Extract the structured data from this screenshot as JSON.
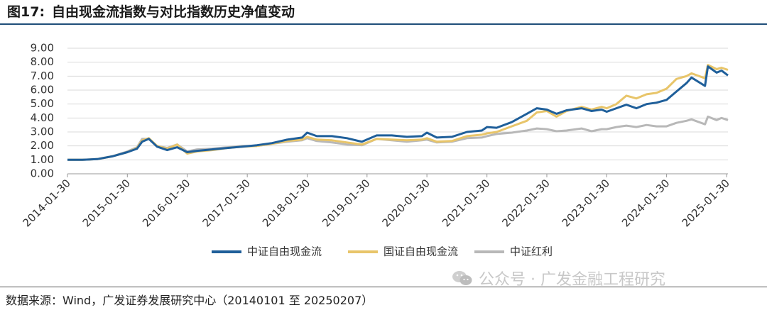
{
  "figure": {
    "number": "图17:",
    "title": "自由现金流指数与对比指数历史净值变动",
    "source": "数据来源：Wind，广发证券发展研究中心（20140101 至 20250207）",
    "watermark": "公众号 · 广发金融工程研究"
  },
  "chart_data": {
    "type": "line",
    "title": "",
    "xlabel": "",
    "ylabel": "",
    "ylim": [
      0,
      9
    ],
    "yticks": [
      "0.00",
      "1.00",
      "2.00",
      "3.00",
      "4.00",
      "5.00",
      "6.00",
      "7.00",
      "8.00",
      "9.00"
    ],
    "xlim": [
      "2014-01-30",
      "2025-02-07"
    ],
    "xticks": [
      "2014-01-30",
      "2015-01-30",
      "2016-01-30",
      "2017-01-30",
      "2018-01-30",
      "2019-01-30",
      "2020-01-30",
      "2021-01-30",
      "2022-01-30",
      "2023-01-30",
      "2024-01-30",
      "2025-01-30"
    ],
    "grid": "horizontal",
    "legend_position": "bottom",
    "series": [
      {
        "name": "中证自由现金流",
        "color": "#1f5f9a",
        "points": [
          [
            "2014-01-30",
            1.0
          ],
          [
            "2014-04-30",
            1.0
          ],
          [
            "2014-07-30",
            1.05
          ],
          [
            "2014-10-30",
            1.25
          ],
          [
            "2015-01-30",
            1.55
          ],
          [
            "2015-03-30",
            1.8
          ],
          [
            "2015-04-30",
            2.3
          ],
          [
            "2015-06-10",
            2.5
          ],
          [
            "2015-07-30",
            1.95
          ],
          [
            "2015-09-30",
            1.7
          ],
          [
            "2015-11-30",
            1.9
          ],
          [
            "2016-01-30",
            1.55
          ],
          [
            "2016-03-30",
            1.65
          ],
          [
            "2016-06-30",
            1.75
          ],
          [
            "2016-09-30",
            1.85
          ],
          [
            "2016-12-30",
            1.95
          ],
          [
            "2017-03-30",
            2.05
          ],
          [
            "2017-06-30",
            2.2
          ],
          [
            "2017-09-30",
            2.45
          ],
          [
            "2017-12-30",
            2.6
          ],
          [
            "2018-01-30",
            2.95
          ],
          [
            "2018-03-30",
            2.7
          ],
          [
            "2018-06-30",
            2.7
          ],
          [
            "2018-09-30",
            2.55
          ],
          [
            "2018-12-30",
            2.3
          ],
          [
            "2019-03-30",
            2.75
          ],
          [
            "2019-06-30",
            2.75
          ],
          [
            "2019-09-30",
            2.65
          ],
          [
            "2019-12-30",
            2.7
          ],
          [
            "2020-01-30",
            2.95
          ],
          [
            "2020-03-30",
            2.6
          ],
          [
            "2020-06-30",
            2.65
          ],
          [
            "2020-09-30",
            3.0
          ],
          [
            "2020-12-30",
            3.1
          ],
          [
            "2021-01-30",
            3.35
          ],
          [
            "2021-03-30",
            3.3
          ],
          [
            "2021-06-30",
            3.7
          ],
          [
            "2021-09-30",
            4.3
          ],
          [
            "2021-11-30",
            4.7
          ],
          [
            "2022-01-30",
            4.6
          ],
          [
            "2022-03-30",
            4.3
          ],
          [
            "2022-05-30",
            4.55
          ],
          [
            "2022-08-30",
            4.7
          ],
          [
            "2022-10-30",
            4.5
          ],
          [
            "2022-12-30",
            4.6
          ],
          [
            "2023-01-30",
            4.45
          ],
          [
            "2023-03-30",
            4.7
          ],
          [
            "2023-05-30",
            4.95
          ],
          [
            "2023-07-30",
            4.7
          ],
          [
            "2023-09-30",
            5.0
          ],
          [
            "2023-11-30",
            5.1
          ],
          [
            "2024-01-30",
            5.3
          ],
          [
            "2024-03-30",
            5.9
          ],
          [
            "2024-05-30",
            6.5
          ],
          [
            "2024-06-30",
            6.9
          ],
          [
            "2024-09-20",
            6.3
          ],
          [
            "2024-10-08",
            7.7
          ],
          [
            "2024-11-30",
            7.25
          ],
          [
            "2024-12-30",
            7.4
          ],
          [
            "2025-02-07",
            7.05
          ]
        ]
      },
      {
        "name": "国证自由现金流",
        "color": "#e8c56a",
        "points": [
          [
            "2014-01-30",
            1.0
          ],
          [
            "2014-04-30",
            1.0
          ],
          [
            "2014-07-30",
            1.05
          ],
          [
            "2014-10-30",
            1.25
          ],
          [
            "2015-01-30",
            1.55
          ],
          [
            "2015-03-30",
            1.85
          ],
          [
            "2015-04-30",
            2.4
          ],
          [
            "2015-06-10",
            2.55
          ],
          [
            "2015-07-30",
            2.0
          ],
          [
            "2015-09-30",
            1.8
          ],
          [
            "2015-11-30",
            2.1
          ],
          [
            "2016-01-30",
            1.45
          ],
          [
            "2016-03-30",
            1.6
          ],
          [
            "2016-06-30",
            1.7
          ],
          [
            "2016-09-30",
            1.85
          ],
          [
            "2016-12-30",
            1.95
          ],
          [
            "2017-03-30",
            2.0
          ],
          [
            "2017-06-30",
            2.15
          ],
          [
            "2017-09-30",
            2.35
          ],
          [
            "2017-12-30",
            2.45
          ],
          [
            "2018-01-30",
            2.65
          ],
          [
            "2018-03-30",
            2.45
          ],
          [
            "2018-06-30",
            2.4
          ],
          [
            "2018-09-30",
            2.25
          ],
          [
            "2018-12-30",
            2.1
          ],
          [
            "2019-03-30",
            2.5
          ],
          [
            "2019-06-30",
            2.45
          ],
          [
            "2019-09-30",
            2.4
          ],
          [
            "2019-12-30",
            2.45
          ],
          [
            "2020-01-30",
            2.55
          ],
          [
            "2020-03-30",
            2.3
          ],
          [
            "2020-06-30",
            2.35
          ],
          [
            "2020-09-30",
            2.7
          ],
          [
            "2020-12-30",
            2.8
          ],
          [
            "2021-01-30",
            2.9
          ],
          [
            "2021-03-30",
            3.0
          ],
          [
            "2021-06-30",
            3.4
          ],
          [
            "2021-09-30",
            3.8
          ],
          [
            "2021-11-30",
            4.4
          ],
          [
            "2022-01-30",
            4.5
          ],
          [
            "2022-03-30",
            4.1
          ],
          [
            "2022-05-30",
            4.5
          ],
          [
            "2022-08-30",
            4.8
          ],
          [
            "2022-10-30",
            4.6
          ],
          [
            "2022-12-30",
            4.8
          ],
          [
            "2023-01-30",
            4.7
          ],
          [
            "2023-03-30",
            5.0
          ],
          [
            "2023-05-30",
            5.6
          ],
          [
            "2023-07-30",
            5.4
          ],
          [
            "2023-09-30",
            5.7
          ],
          [
            "2023-11-30",
            5.8
          ],
          [
            "2024-01-30",
            6.1
          ],
          [
            "2024-03-30",
            6.8
          ],
          [
            "2024-05-30",
            7.0
          ],
          [
            "2024-06-30",
            7.2
          ],
          [
            "2024-09-20",
            6.85
          ],
          [
            "2024-10-08",
            7.8
          ],
          [
            "2024-11-30",
            7.5
          ],
          [
            "2024-12-30",
            7.6
          ],
          [
            "2025-02-07",
            7.45
          ]
        ]
      },
      {
        "name": "中证红利",
        "color": "#b8b8b8",
        "points": [
          [
            "2014-01-30",
            1.0
          ],
          [
            "2014-04-30",
            1.0
          ],
          [
            "2014-07-30",
            1.05
          ],
          [
            "2014-10-30",
            1.25
          ],
          [
            "2015-01-30",
            1.6
          ],
          [
            "2015-03-30",
            1.9
          ],
          [
            "2015-04-30",
            2.5
          ],
          [
            "2015-06-10",
            2.5
          ],
          [
            "2015-07-30",
            2.0
          ],
          [
            "2015-09-30",
            1.85
          ],
          [
            "2015-11-30",
            2.1
          ],
          [
            "2016-01-30",
            1.6
          ],
          [
            "2016-03-30",
            1.75
          ],
          [
            "2016-06-30",
            1.8
          ],
          [
            "2016-09-30",
            1.9
          ],
          [
            "2016-12-30",
            2.0
          ],
          [
            "2017-03-30",
            2.0
          ],
          [
            "2017-06-30",
            2.15
          ],
          [
            "2017-09-30",
            2.3
          ],
          [
            "2017-12-30",
            2.4
          ],
          [
            "2018-01-30",
            2.55
          ],
          [
            "2018-03-30",
            2.35
          ],
          [
            "2018-06-30",
            2.25
          ],
          [
            "2018-09-30",
            2.1
          ],
          [
            "2018-12-30",
            2.05
          ],
          [
            "2019-03-30",
            2.5
          ],
          [
            "2019-06-30",
            2.4
          ],
          [
            "2019-09-30",
            2.3
          ],
          [
            "2019-12-30",
            2.4
          ],
          [
            "2020-01-30",
            2.45
          ],
          [
            "2020-03-30",
            2.25
          ],
          [
            "2020-06-30",
            2.3
          ],
          [
            "2020-09-30",
            2.55
          ],
          [
            "2020-12-30",
            2.6
          ],
          [
            "2021-01-30",
            2.7
          ],
          [
            "2021-03-30",
            2.85
          ],
          [
            "2021-06-30",
            2.95
          ],
          [
            "2021-09-30",
            3.1
          ],
          [
            "2021-11-30",
            3.25
          ],
          [
            "2022-01-30",
            3.2
          ],
          [
            "2022-03-30",
            3.05
          ],
          [
            "2022-05-30",
            3.1
          ],
          [
            "2022-08-30",
            3.25
          ],
          [
            "2022-10-30",
            3.05
          ],
          [
            "2022-12-30",
            3.2
          ],
          [
            "2023-01-30",
            3.2
          ],
          [
            "2023-03-30",
            3.35
          ],
          [
            "2023-05-30",
            3.45
          ],
          [
            "2023-07-30",
            3.35
          ],
          [
            "2023-09-30",
            3.5
          ],
          [
            "2023-11-30",
            3.4
          ],
          [
            "2024-01-30",
            3.4
          ],
          [
            "2024-03-30",
            3.65
          ],
          [
            "2024-05-30",
            3.8
          ],
          [
            "2024-06-30",
            3.9
          ],
          [
            "2024-09-20",
            3.55
          ],
          [
            "2024-10-08",
            4.1
          ],
          [
            "2024-11-30",
            3.85
          ],
          [
            "2024-12-30",
            4.0
          ],
          [
            "2025-02-07",
            3.85
          ]
        ]
      }
    ]
  }
}
